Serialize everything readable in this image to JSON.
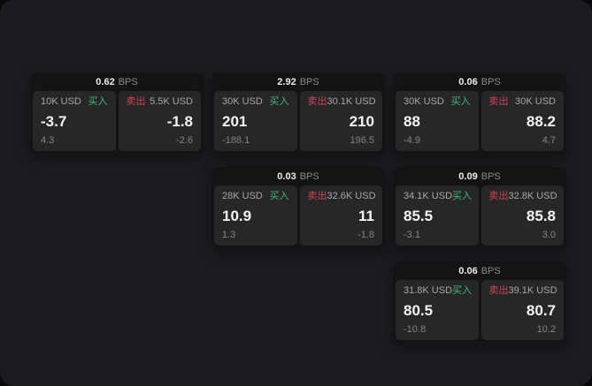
{
  "window": {
    "background": "#0a0a0a",
    "surface": "#1c1c1e"
  },
  "labels": {
    "bps_unit": "BPS",
    "buy": "买入",
    "sell": "卖出"
  },
  "colors": {
    "buy_accent": "#40b879",
    "sell_accent": "#d24256",
    "card_bg": "#141414",
    "panel_bg": "#272727"
  },
  "cards": [
    {
      "bps": "0.62",
      "row": 1,
      "col": 1,
      "buy": {
        "amount": "10K USD",
        "price": "-3.7",
        "delta": "4.3"
      },
      "sell": {
        "amount": "5.5K USD",
        "price": "-1.8",
        "delta": "-2.6"
      }
    },
    {
      "bps": "2.92",
      "row": 1,
      "col": 2,
      "buy": {
        "amount": "30K USD",
        "price": "201",
        "delta": "-188.1"
      },
      "sell": {
        "amount": "30.1K USD",
        "price": "210",
        "delta": "196.5"
      }
    },
    {
      "bps": "0.06",
      "row": 1,
      "col": 3,
      "buy": {
        "amount": "30K USD",
        "price": "88",
        "delta": "-4.9"
      },
      "sell": {
        "amount": "30K USD",
        "price": "88.2",
        "delta": "4.7"
      }
    },
    {
      "bps": "0.03",
      "row": 2,
      "col": 2,
      "buy": {
        "amount": "28K USD",
        "price": "10.9",
        "delta": "1.3"
      },
      "sell": {
        "amount": "32.6K USD",
        "price": "11",
        "delta": "-1.8"
      }
    },
    {
      "bps": "0.09",
      "row": 2,
      "col": 3,
      "buy": {
        "amount": "34.1K USD",
        "price": "85.5",
        "delta": "-3.1"
      },
      "sell": {
        "amount": "32.8K USD",
        "price": "85.8",
        "delta": "3.0"
      }
    },
    {
      "bps": "0.06",
      "row": 3,
      "col": 3,
      "buy": {
        "amount": "31.8K USD",
        "price": "80.5",
        "delta": "-10.8"
      },
      "sell": {
        "amount": "39.1K USD",
        "price": "80.7",
        "delta": "10.2"
      }
    }
  ]
}
